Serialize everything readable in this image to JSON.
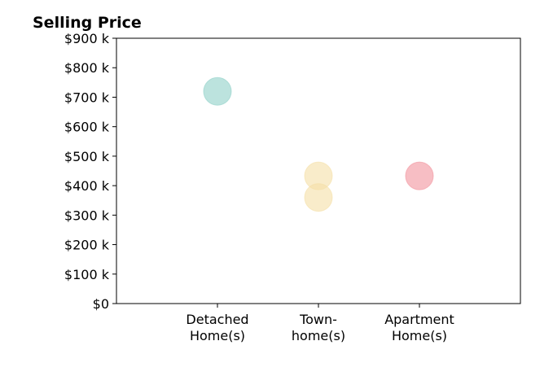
{
  "chart_data": {
    "type": "scatter",
    "title": "Selling Price",
    "xlabel": "",
    "ylabel": "",
    "categories": [
      "Detached Home(s)",
      "Town- home(s)",
      "Apartment Home(s)"
    ],
    "category_label_lines": [
      [
        "Detached",
        "Home(s)"
      ],
      [
        "Town-",
        "home(s)"
      ],
      [
        "Apartment",
        "Home(s)"
      ]
    ],
    "y_ticks": [
      0,
      100,
      200,
      300,
      400,
      500,
      600,
      700,
      800,
      900
    ],
    "y_tick_labels": [
      "$0",
      "$100 k",
      "$200 k",
      "$300 k",
      "$400 k",
      "$500 k",
      "$600 k",
      "$700 k",
      "$800 k",
      "$900 k"
    ],
    "ylim": [
      0,
      900
    ],
    "xlim": [
      -1,
      3
    ],
    "grid": false,
    "points": [
      {
        "category": "Detached Home(s)",
        "y": 720,
        "color": "#8fd0c8"
      },
      {
        "category": "Town- home(s)",
        "y": 433,
        "color": "#f5dfa6"
      },
      {
        "category": "Town- home(s)",
        "y": 360,
        "color": "#f5dfa6"
      },
      {
        "category": "Apartment Home(s)",
        "y": 433,
        "color": "#f2939c"
      }
    ],
    "marker_opacity": 0.6
  }
}
